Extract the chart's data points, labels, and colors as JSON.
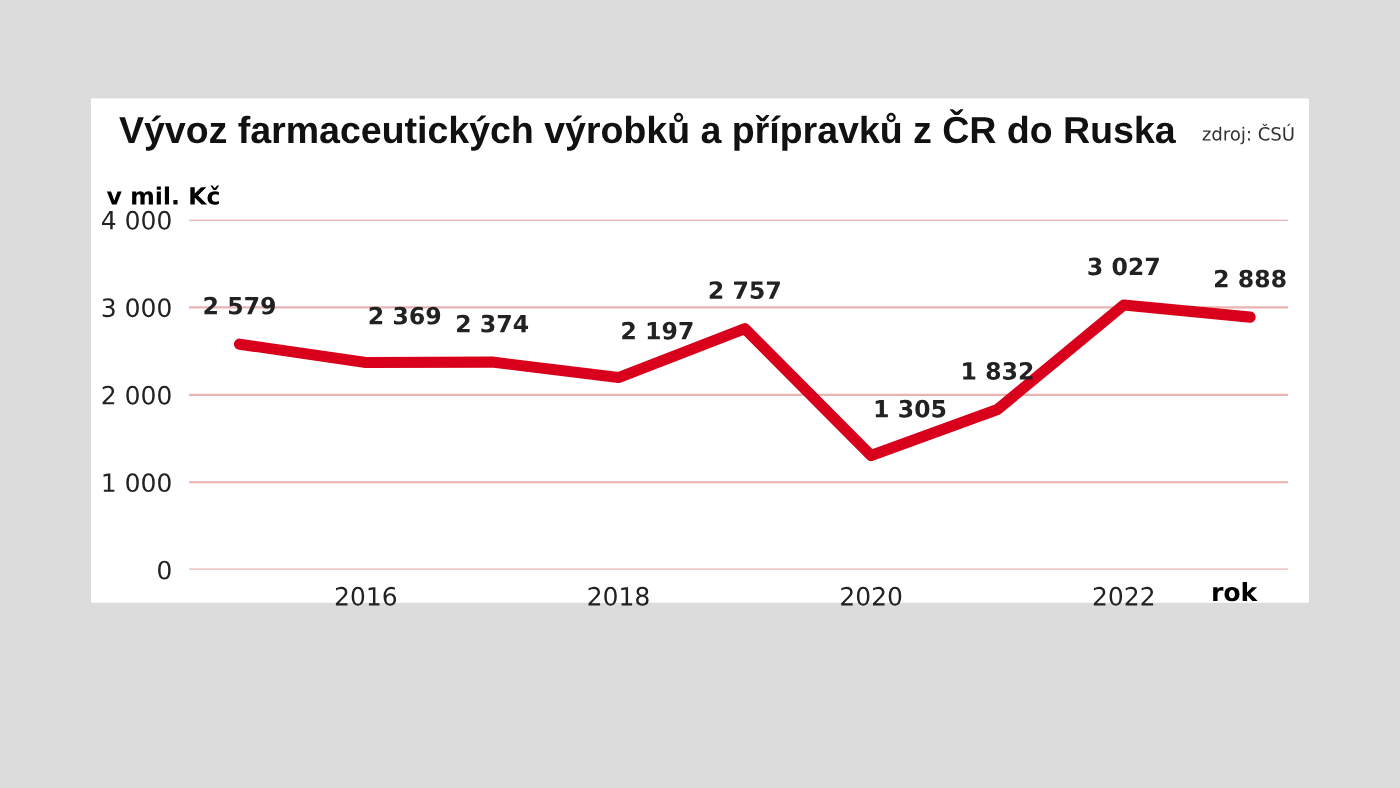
{
  "chart_data": {
    "type": "line",
    "title": "Vývoz farmaceutických výrobků a přípravků z ČR do Ruska",
    "ylabel": "v mil. Kč",
    "xlabel": "rok",
    "annotations": [
      "zdroj: ČSÚ"
    ],
    "x": [
      2015,
      2016,
      2017,
      2018,
      2019,
      2020,
      2021,
      2022,
      2023
    ],
    "series": [
      {
        "color": "#d9001b",
        "values": [
          2579,
          2369,
          2374,
          2197,
          2757,
          1305,
          1832,
          3027,
          2888
        ],
        "value_labels": [
          "2 579",
          "2 369",
          "2 374",
          "2 197",
          "2 757",
          "1 305",
          "1 832",
          "3 027",
          "2 888"
        ]
      }
    ],
    "xlim": [
      2014.6,
      2023.3
    ],
    "xticks": [
      2016,
      2018,
      2020,
      2022
    ],
    "ylim": [
      0,
      4000
    ],
    "yticks": [
      0,
      {
        "value": 1000,
        "label": "1 000"
      },
      {
        "value": 2000,
        "label": "2 000"
      },
      {
        "value": 3000,
        "label": "3 000"
      },
      {
        "value": 4000,
        "label": "4 000"
      }
    ],
    "grid": "y",
    "legend": false,
    "marker": "none",
    "line_style": "solid"
  }
}
